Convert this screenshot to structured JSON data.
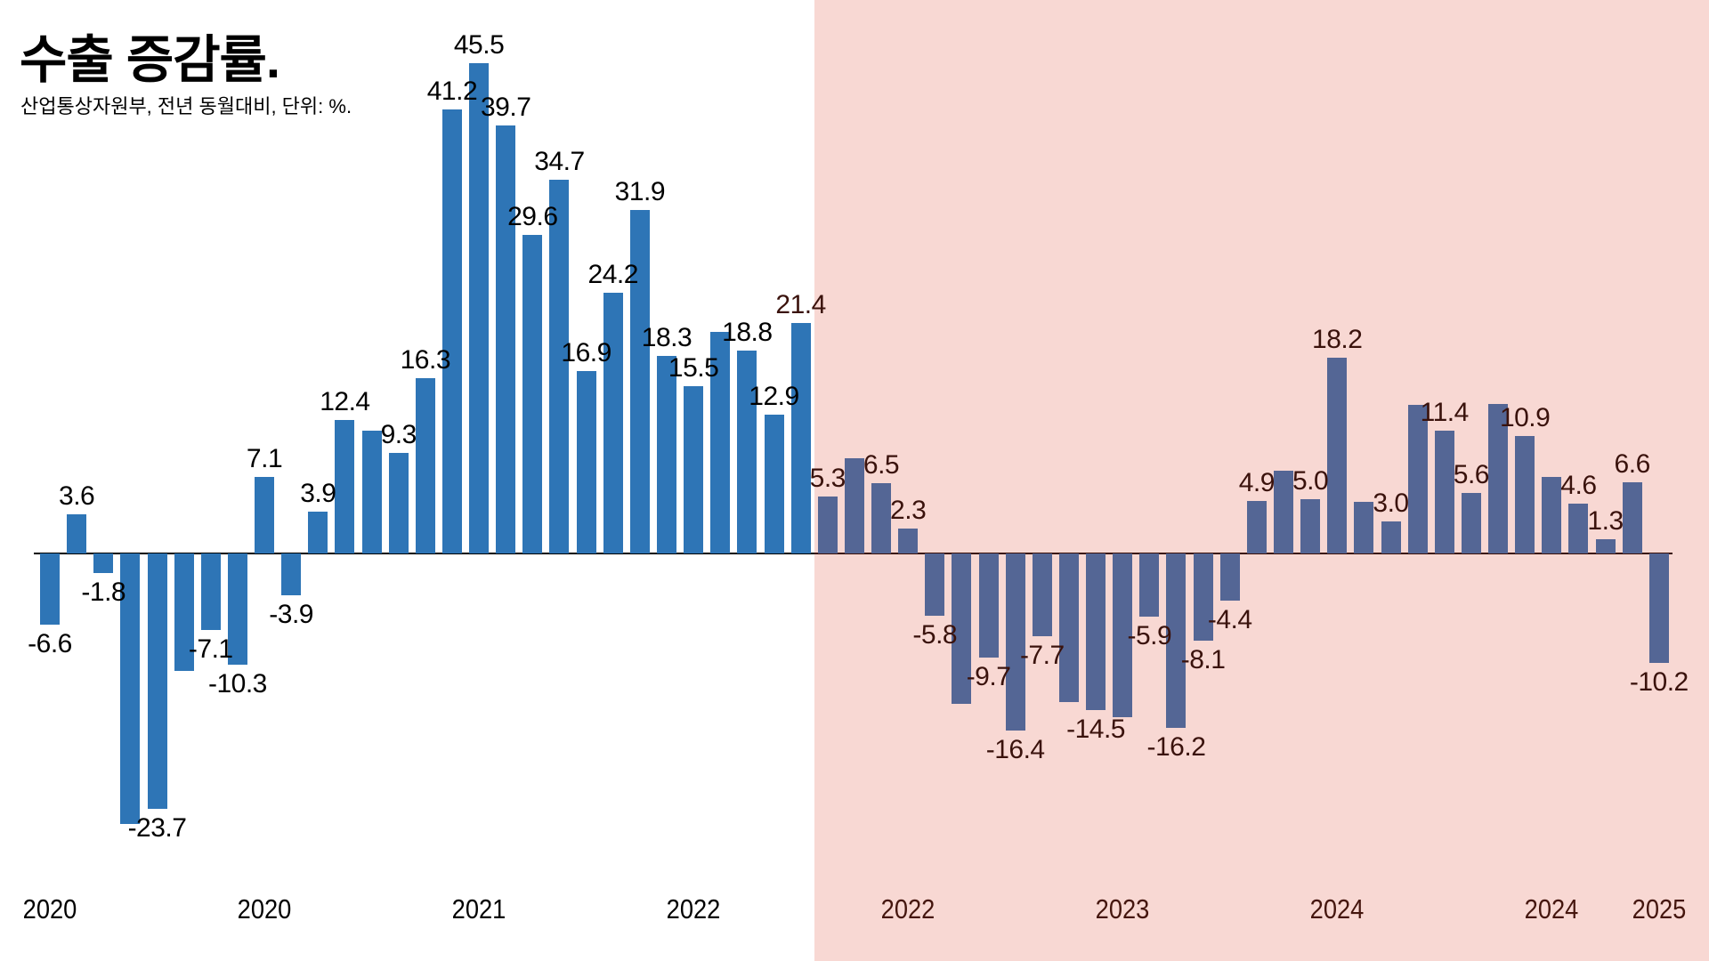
{
  "title": "수출 증감률.",
  "subtitle": "산업통상자원부, 전년 동월대비, 단위: %.",
  "colors": {
    "background_left": "#ffffff",
    "background_highlight": "#f8d8d3",
    "bar_left": "#2e75b6",
    "bar_highlight": "#546695",
    "label_left": "#000000",
    "label_highlight": "#3a120c",
    "axis_left": "#000000",
    "axis_highlight": "#3a0f08"
  },
  "chart_data": {
    "type": "bar",
    "title": "수출 증감률.",
    "source_note": "산업통상자원부, 전년 동월대비, 단위: %.",
    "unit": "%",
    "ylim": [
      -26,
      46
    ],
    "grid": false,
    "highlight_region_start_index": 29,
    "bars": [
      {
        "month": "2020-01",
        "value": -6.6,
        "label": "-6.6"
      },
      {
        "month": "2020-02",
        "value": 3.6,
        "label": "3.6"
      },
      {
        "month": "2020-03",
        "value": -1.8,
        "label": "-1.8"
      },
      {
        "month": "2020-04",
        "value": -25.1,
        "label": ""
      },
      {
        "month": "2020-05",
        "value": -23.7,
        "label": "-23.7"
      },
      {
        "month": "2020-06",
        "value": -10.9,
        "label": ""
      },
      {
        "month": "2020-07",
        "value": -7.1,
        "label": "-7.1"
      },
      {
        "month": "2020-08",
        "value": -10.3,
        "label": "-10.3"
      },
      {
        "month": "2020-09",
        "value": 7.1,
        "label": "7.1"
      },
      {
        "month": "2020-10",
        "value": -3.9,
        "label": "-3.9"
      },
      {
        "month": "2020-11",
        "value": 3.9,
        "label": "3.9"
      },
      {
        "month": "2020-12",
        "value": 12.4,
        "label": "12.4"
      },
      {
        "month": "2021-01",
        "value": 11.4,
        "label": ""
      },
      {
        "month": "2021-02",
        "value": 9.3,
        "label": "9.3"
      },
      {
        "month": "2021-03",
        "value": 16.3,
        "label": "16.3"
      },
      {
        "month": "2021-04",
        "value": 41.2,
        "label": "41.2"
      },
      {
        "month": "2021-05",
        "value": 45.5,
        "label": "45.5"
      },
      {
        "month": "2021-06",
        "value": 39.7,
        "label": "39.7"
      },
      {
        "month": "2021-07",
        "value": 29.6,
        "label": "29.6"
      },
      {
        "month": "2021-08",
        "value": 34.7,
        "label": "34.7"
      },
      {
        "month": "2021-09",
        "value": 16.9,
        "label": "16.9"
      },
      {
        "month": "2021-10",
        "value": 24.2,
        "label": "24.2"
      },
      {
        "month": "2021-11",
        "value": 31.9,
        "label": "31.9"
      },
      {
        "month": "2021-12",
        "value": 18.3,
        "label": "18.3"
      },
      {
        "month": "2022-01",
        "value": 15.5,
        "label": "15.5"
      },
      {
        "month": "2022-02",
        "value": 20.6,
        "label": ""
      },
      {
        "month": "2022-03",
        "value": 18.8,
        "label": "18.8"
      },
      {
        "month": "2022-04",
        "value": 12.9,
        "label": "12.9"
      },
      {
        "month": "2022-05",
        "value": 21.4,
        "label": "21.4"
      },
      {
        "month": "2022-06",
        "value": 5.3,
        "label": "5.3"
      },
      {
        "month": "2022-07",
        "value": 8.8,
        "label": ""
      },
      {
        "month": "2022-08",
        "value": 6.5,
        "label": "6.5"
      },
      {
        "month": "2022-09",
        "value": 2.3,
        "label": "2.3"
      },
      {
        "month": "2022-10",
        "value": -5.8,
        "label": "-5.8"
      },
      {
        "month": "2022-11",
        "value": -14.0,
        "label": ""
      },
      {
        "month": "2022-12",
        "value": -9.7,
        "label": "-9.7"
      },
      {
        "month": "2023-01",
        "value": -16.4,
        "label": "-16.4"
      },
      {
        "month": "2023-02",
        "value": -7.7,
        "label": "-7.7"
      },
      {
        "month": "2023-03",
        "value": -13.8,
        "label": ""
      },
      {
        "month": "2023-04",
        "value": -14.5,
        "label": "-14.5"
      },
      {
        "month": "2023-05",
        "value": -15.2,
        "label": ""
      },
      {
        "month": "2023-06",
        "value": -5.9,
        "label": "-5.9"
      },
      {
        "month": "2023-07",
        "value": -16.2,
        "label": "-16.2"
      },
      {
        "month": "2023-08",
        "value": -8.1,
        "label": "-8.1"
      },
      {
        "month": "2023-09",
        "value": -4.4,
        "label": "-4.4"
      },
      {
        "month": "2023-10",
        "value": 4.9,
        "label": "4.9"
      },
      {
        "month": "2023-11",
        "value": 7.7,
        "label": ""
      },
      {
        "month": "2023-12",
        "value": 5.0,
        "label": "5.0"
      },
      {
        "month": "2024-01",
        "value": 18.2,
        "label": "18.2"
      },
      {
        "month": "2024-02",
        "value": 4.8,
        "label": ""
      },
      {
        "month": "2024-03",
        "value": 3.0,
        "label": "3.0"
      },
      {
        "month": "2024-04",
        "value": 13.8,
        "label": ""
      },
      {
        "month": "2024-05",
        "value": 11.4,
        "label": "11.4"
      },
      {
        "month": "2024-06",
        "value": 5.6,
        "label": "5.6"
      },
      {
        "month": "2024-07",
        "value": 13.9,
        "label": ""
      },
      {
        "month": "2024-08",
        "value": 10.9,
        "label": "10.9"
      },
      {
        "month": "2024-09",
        "value": 7.1,
        "label": ""
      },
      {
        "month": "2024-10",
        "value": 4.6,
        "label": "4.6"
      },
      {
        "month": "2024-11",
        "value": 1.3,
        "label": "1.3"
      },
      {
        "month": "2024-12",
        "value": 6.6,
        "label": "6.6"
      },
      {
        "month": "2025-01",
        "value": -10.2,
        "label": "-10.2"
      }
    ],
    "x_ticks": [
      {
        "index": 0,
        "label": "2020"
      },
      {
        "index": 8,
        "label": "2020"
      },
      {
        "index": 16,
        "label": "2021"
      },
      {
        "index": 24,
        "label": "2022"
      },
      {
        "index": 32,
        "label": "2022"
      },
      {
        "index": 40,
        "label": "2023"
      },
      {
        "index": 48,
        "label": "2024"
      },
      {
        "index": 56,
        "label": "2024"
      },
      {
        "index": 60,
        "label": "2025"
      }
    ]
  }
}
